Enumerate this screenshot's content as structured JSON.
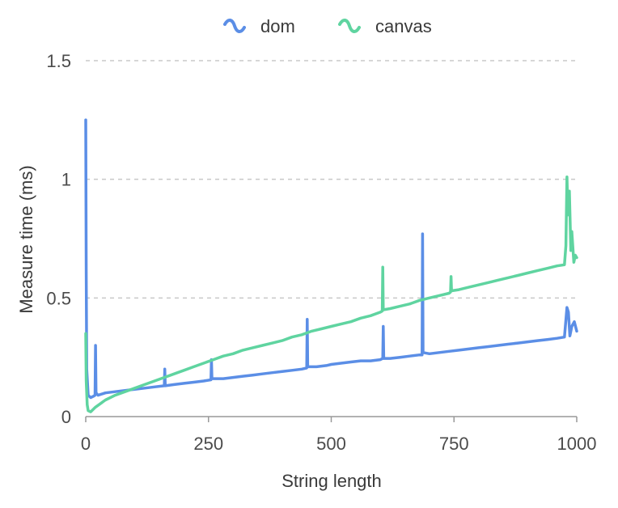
{
  "chart_data": {
    "type": "line",
    "title": "",
    "xlabel": "String length",
    "ylabel": "Measure time (ms)",
    "xlim": [
      0,
      1000
    ],
    "ylim": [
      0,
      1.5
    ],
    "x_ticks": [
      {
        "value": 0,
        "label": "0"
      },
      {
        "value": 250,
        "label": "250"
      },
      {
        "value": 500,
        "label": "500"
      },
      {
        "value": 750,
        "label": "750"
      },
      {
        "value": 1000,
        "label": "1000"
      }
    ],
    "y_ticks": [
      {
        "value": 0,
        "label": "0"
      },
      {
        "value": 0.5,
        "label": "0.5"
      },
      {
        "value": 1,
        "label": "1"
      },
      {
        "value": 1.5,
        "label": "1.5"
      }
    ],
    "grid": "horizontal dashed at y ticks",
    "legend": "top-center",
    "series": [
      {
        "name": "dom",
        "color": "#5b8ee6",
        "points": [
          [
            0,
            1.25
          ],
          [
            1,
            0.6
          ],
          [
            2,
            0.2
          ],
          [
            5,
            0.09
          ],
          [
            10,
            0.08
          ],
          [
            15,
            0.085
          ],
          [
            19,
            0.09
          ],
          [
            20,
            0.3
          ],
          [
            21,
            0.1
          ],
          [
            25,
            0.09
          ],
          [
            40,
            0.1
          ],
          [
            60,
            0.105
          ],
          [
            80,
            0.11
          ],
          [
            100,
            0.115
          ],
          [
            120,
            0.12
          ],
          [
            140,
            0.125
          ],
          [
            160,
            0.13
          ],
          [
            161,
            0.2
          ],
          [
            162,
            0.13
          ],
          [
            180,
            0.135
          ],
          [
            200,
            0.14
          ],
          [
            220,
            0.145
          ],
          [
            240,
            0.15
          ],
          [
            255,
            0.155
          ],
          [
            256,
            0.24
          ],
          [
            257,
            0.16
          ],
          [
            280,
            0.16
          ],
          [
            300,
            0.165
          ],
          [
            320,
            0.17
          ],
          [
            340,
            0.175
          ],
          [
            360,
            0.18
          ],
          [
            380,
            0.185
          ],
          [
            400,
            0.19
          ],
          [
            420,
            0.195
          ],
          [
            440,
            0.2
          ],
          [
            450,
            0.205
          ],
          [
            451,
            0.41
          ],
          [
            452,
            0.21
          ],
          [
            470,
            0.21
          ],
          [
            490,
            0.215
          ],
          [
            500,
            0.22
          ],
          [
            520,
            0.225
          ],
          [
            540,
            0.23
          ],
          [
            560,
            0.235
          ],
          [
            580,
            0.235
          ],
          [
            600,
            0.24
          ],
          [
            605,
            0.245
          ],
          [
            606,
            0.38
          ],
          [
            607,
            0.245
          ],
          [
            620,
            0.245
          ],
          [
            640,
            0.25
          ],
          [
            660,
            0.255
          ],
          [
            680,
            0.26
          ],
          [
            685,
            0.26
          ],
          [
            686,
            0.77
          ],
          [
            687,
            0.27
          ],
          [
            700,
            0.265
          ],
          [
            720,
            0.27
          ],
          [
            740,
            0.275
          ],
          [
            760,
            0.28
          ],
          [
            780,
            0.285
          ],
          [
            800,
            0.29
          ],
          [
            820,
            0.295
          ],
          [
            840,
            0.3
          ],
          [
            860,
            0.305
          ],
          [
            880,
            0.31
          ],
          [
            900,
            0.315
          ],
          [
            920,
            0.32
          ],
          [
            940,
            0.325
          ],
          [
            960,
            0.33
          ],
          [
            975,
            0.335
          ],
          [
            980,
            0.46
          ],
          [
            983,
            0.44
          ],
          [
            986,
            0.34
          ],
          [
            990,
            0.38
          ],
          [
            995,
            0.4
          ],
          [
            1000,
            0.36
          ]
        ]
      },
      {
        "name": "canvas",
        "color": "#5fd4a0",
        "points": [
          [
            0,
            0.35
          ],
          [
            1,
            0.15
          ],
          [
            3,
            0.05
          ],
          [
            5,
            0.025
          ],
          [
            10,
            0.02
          ],
          [
            20,
            0.04
          ],
          [
            30,
            0.055
          ],
          [
            40,
            0.07
          ],
          [
            60,
            0.09
          ],
          [
            80,
            0.105
          ],
          [
            100,
            0.12
          ],
          [
            120,
            0.135
          ],
          [
            140,
            0.15
          ],
          [
            160,
            0.165
          ],
          [
            180,
            0.18
          ],
          [
            200,
            0.195
          ],
          [
            220,
            0.21
          ],
          [
            240,
            0.225
          ],
          [
            260,
            0.24
          ],
          [
            280,
            0.255
          ],
          [
            300,
            0.265
          ],
          [
            320,
            0.28
          ],
          [
            340,
            0.29
          ],
          [
            360,
            0.3
          ],
          [
            380,
            0.31
          ],
          [
            400,
            0.32
          ],
          [
            420,
            0.335
          ],
          [
            440,
            0.345
          ],
          [
            460,
            0.36
          ],
          [
            480,
            0.37
          ],
          [
            500,
            0.38
          ],
          [
            520,
            0.39
          ],
          [
            540,
            0.4
          ],
          [
            560,
            0.415
          ],
          [
            580,
            0.425
          ],
          [
            600,
            0.44
          ],
          [
            604,
            0.445
          ],
          [
            605,
            0.63
          ],
          [
            606,
            0.45
          ],
          [
            620,
            0.455
          ],
          [
            640,
            0.465
          ],
          [
            660,
            0.475
          ],
          [
            680,
            0.49
          ],
          [
            700,
            0.5
          ],
          [
            720,
            0.51
          ],
          [
            740,
            0.52
          ],
          [
            743,
            0.525
          ],
          [
            744,
            0.59
          ],
          [
            745,
            0.53
          ],
          [
            760,
            0.535
          ],
          [
            780,
            0.545
          ],
          [
            800,
            0.555
          ],
          [
            820,
            0.565
          ],
          [
            840,
            0.575
          ],
          [
            860,
            0.585
          ],
          [
            880,
            0.595
          ],
          [
            900,
            0.605
          ],
          [
            920,
            0.615
          ],
          [
            940,
            0.625
          ],
          [
            960,
            0.635
          ],
          [
            975,
            0.64
          ],
          [
            978,
            0.72
          ],
          [
            980,
            1.01
          ],
          [
            982,
            0.85
          ],
          [
            985,
            0.95
          ],
          [
            988,
            0.7
          ],
          [
            990,
            0.78
          ],
          [
            994,
            0.65
          ],
          [
            997,
            0.68
          ],
          [
            1000,
            0.67
          ]
        ]
      }
    ]
  }
}
